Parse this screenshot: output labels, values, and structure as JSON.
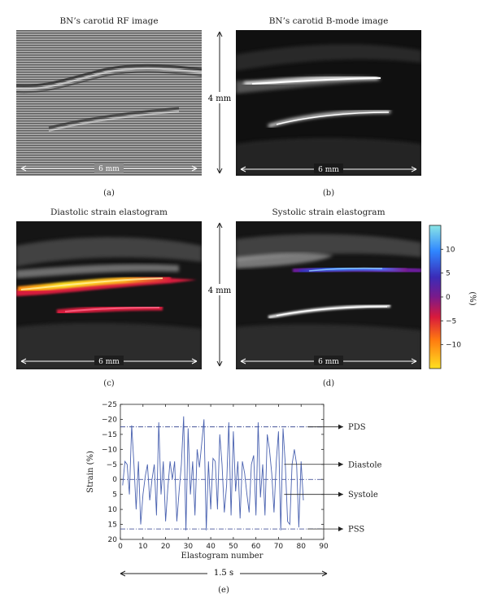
{
  "panels": {
    "a": {
      "title": "BN’s carotid RF image",
      "scale": "6 mm",
      "caption": "(a)"
    },
    "b": {
      "title": "BN’s carotid B-mode image",
      "scale": "6 mm",
      "caption": "(b)"
    },
    "c": {
      "title": "Diastolic strain elastogram",
      "scale": "6 mm",
      "caption": "(c)"
    },
    "d": {
      "title": "Systolic strain elastogram",
      "scale": "6 mm",
      "caption": "(d)"
    },
    "e": {
      "caption": "(e)"
    }
  },
  "vertical_scale_top": "4 mm",
  "vertical_scale_bottom": "4 mm",
  "colorbar": {
    "ticks": [
      "10",
      "5",
      "0",
      "−5",
      "−10"
    ],
    "unit": "(%)",
    "colors": [
      "#8ae6e6",
      "#2f86ff",
      "#3a2cb8",
      "#7a1a8a",
      "#d81a3c",
      "#ff7a10",
      "#ffe020"
    ]
  },
  "time_span": "1.5 s",
  "chart_data": {
    "type": "line",
    "xlabel": "Elastogram number",
    "ylabel": "Strain (%)",
    "xlim": [
      0,
      90
    ],
    "ylim": [
      20,
      -25
    ],
    "xticks": [
      0,
      10,
      20,
      30,
      40,
      50,
      60,
      70,
      80,
      90
    ],
    "yticks": [
      -25,
      -20,
      -15,
      -10,
      -5,
      0,
      5,
      10,
      15,
      20
    ],
    "ytick_labels": [
      "−25",
      "−20",
      "−15",
      "−10",
      "−5",
      "0",
      "5",
      "10",
      "15",
      "20"
    ],
    "reference_lines": [
      {
        "label": "PDS",
        "y": -17.5
      },
      {
        "label": "PSS",
        "y": 16.5
      }
    ],
    "annotations": [
      {
        "label": "Diastole",
        "y": -5
      },
      {
        "label": "Systole",
        "y": 5
      },
      {
        "label": "PDS",
        "y": -17.5
      },
      {
        "label": "PSS",
        "y": 16.5
      }
    ],
    "series": [
      {
        "color": "#4a62b0",
        "x": [
          1,
          2,
          3,
          4,
          5,
          6,
          7,
          8,
          9,
          10,
          11,
          12,
          13,
          14,
          15,
          16,
          17,
          18,
          19,
          20,
          21,
          22,
          23,
          24,
          25,
          26,
          27,
          28,
          29,
          30,
          31,
          32,
          33,
          34,
          35,
          36,
          37,
          38,
          39,
          40,
          41,
          42,
          43,
          44,
          45,
          46,
          47,
          48,
          49,
          50,
          51,
          52,
          53,
          54,
          55,
          56,
          57,
          58,
          59,
          60,
          61,
          62,
          63,
          64,
          65,
          66,
          67,
          68,
          69,
          70,
          71,
          72,
          73,
          74,
          75,
          76,
          77,
          78,
          79,
          80,
          81
        ],
        "y": [
          2,
          -6,
          -5,
          5,
          -18,
          -5,
          10,
          -6,
          15,
          5,
          -1,
          -5,
          7,
          0,
          -5,
          12,
          -19,
          5,
          -6,
          14,
          3,
          -6,
          0,
          -6,
          14,
          4,
          -5,
          -21,
          17,
          -17,
          5,
          -6,
          12,
          -10,
          -4,
          -12,
          -20,
          17,
          -6,
          10,
          -7,
          -6,
          10,
          -15,
          -5,
          11,
          2,
          -19,
          12,
          -16,
          4,
          -6,
          13,
          -6,
          -2,
          5,
          11,
          -5,
          -8,
          12,
          -19,
          6,
          -5,
          12,
          -15,
          -10,
          -2,
          11,
          -6,
          -16,
          17,
          -17,
          -5,
          14,
          15,
          -5,
          -10,
          -5,
          16,
          -6,
          7
        ]
      }
    ]
  }
}
